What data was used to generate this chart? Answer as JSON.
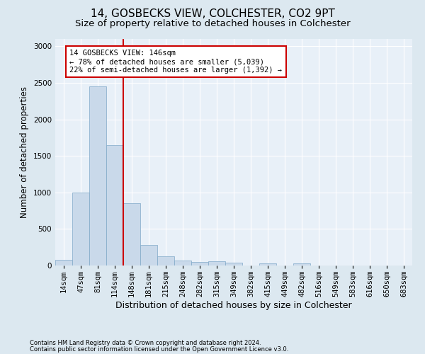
{
  "title": "14, GOSBECKS VIEW, COLCHESTER, CO2 9PT",
  "subtitle": "Size of property relative to detached houses in Colchester",
  "xlabel": "Distribution of detached houses by size in Colchester",
  "ylabel": "Number of detached properties",
  "footer_line1": "Contains HM Land Registry data © Crown copyright and database right 2024.",
  "footer_line2": "Contains public sector information licensed under the Open Government Licence v3.0.",
  "bin_labels": [
    "14sqm",
    "47sqm",
    "81sqm",
    "114sqm",
    "148sqm",
    "181sqm",
    "215sqm",
    "248sqm",
    "282sqm",
    "315sqm",
    "349sqm",
    "382sqm",
    "415sqm",
    "449sqm",
    "482sqm",
    "516sqm",
    "549sqm",
    "583sqm",
    "616sqm",
    "650sqm",
    "683sqm"
  ],
  "bar_heights": [
    80,
    1000,
    2450,
    1650,
    850,
    280,
    130,
    65,
    50,
    55,
    40,
    0,
    30,
    0,
    30,
    0,
    0,
    0,
    0,
    0,
    0
  ],
  "bar_color": "#c9d9ea",
  "bar_edge_color": "#7fa8c8",
  "vline_x": 3.5,
  "vline_color": "#cc0000",
  "annotation_text": "14 GOSBECKS VIEW: 146sqm\n← 78% of detached houses are smaller (5,039)\n22% of semi-detached houses are larger (1,392) →",
  "annotation_box_color": "#ffffff",
  "annotation_box_edge": "#cc0000",
  "ylim": [
    0,
    3100
  ],
  "yticks": [
    0,
    500,
    1000,
    1500,
    2000,
    2500,
    3000
  ],
  "background_color": "#dce8f0",
  "plot_bg_color": "#e8f0f8",
  "grid_color": "#ffffff",
  "title_fontsize": 11,
  "subtitle_fontsize": 9.5,
  "tick_fontsize": 7.5,
  "ylabel_fontsize": 8.5,
  "xlabel_fontsize": 9,
  "footer_fontsize": 6,
  "ann_fontsize": 7.5
}
